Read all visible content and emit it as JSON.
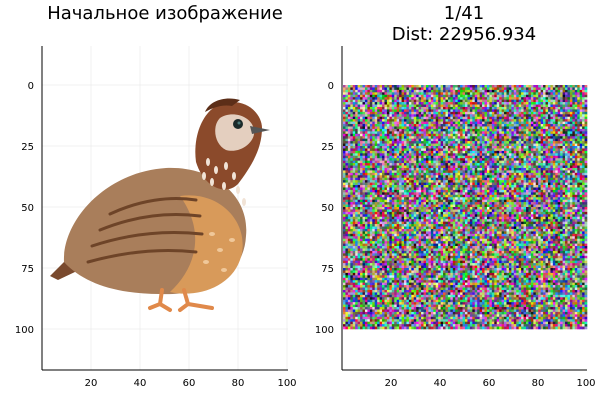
{
  "panels": [
    {
      "title": "Начальное изображение",
      "image": "quail-image",
      "xticks": [
        "20",
        "40",
        "60",
        "80",
        "100"
      ],
      "yticks": [
        "0",
        "25",
        "50",
        "75",
        "100"
      ]
    },
    {
      "title_line1": "1/41",
      "title_line2": "Dist: 22956.934",
      "image": "random-noise-image",
      "xticks": [
        "20",
        "40",
        "60",
        "80",
        "100"
      ],
      "yticks": [
        "0",
        "25",
        "50",
        "75",
        "100"
      ]
    }
  ],
  "colors": {
    "background": "#ffffff",
    "axis": "#000000",
    "grid": "#e6e6e6",
    "quail_body": "#a97e5b",
    "quail_breast": "#d89a5a",
    "quail_head": "#8b4a2b",
    "quail_legs": "#e0894a"
  }
}
